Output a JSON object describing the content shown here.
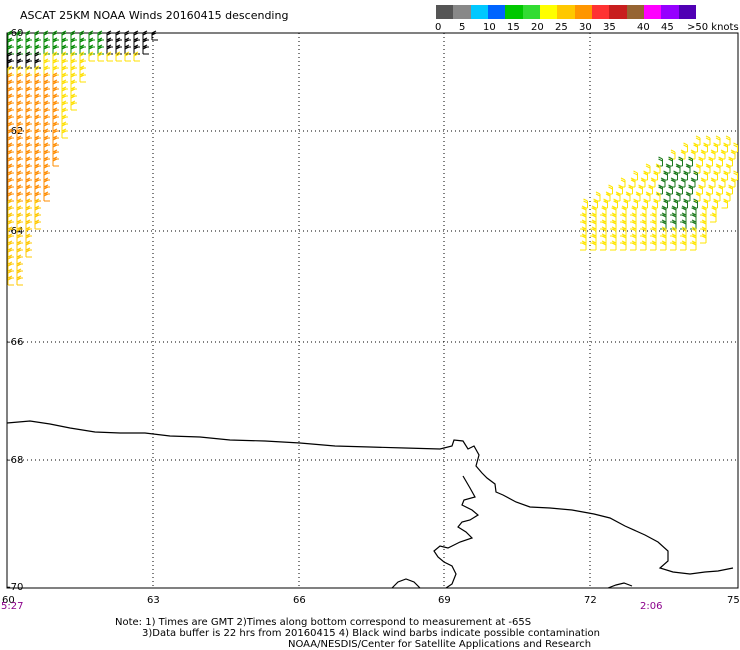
{
  "title": "ASCAT 25KM NOAA Winds 20160415 descending",
  "legend": {
    "colors": [
      "#555555",
      "#888888",
      "#00c8ff",
      "#0064ff",
      "#00c800",
      "#32dc32",
      "#ffff00",
      "#ffc800",
      "#ff9600",
      "#ff3232",
      "#c81e1e",
      "#966432",
      "#ff00ff",
      "#9600ff",
      "#5000b4"
    ],
    "labels": [
      "0",
      "5",
      "10",
      "15",
      "20",
      "25",
      "30",
      "35",
      "40",
      "45",
      ">50 knots"
    ]
  },
  "map": {
    "lat_labels": [
      "-60",
      "-62",
      "-64",
      "-66",
      "-68",
      "-70"
    ],
    "lon_labels": [
      "60",
      "63",
      "66",
      "69",
      "72",
      "75"
    ],
    "times": [
      "5:27",
      "2:06"
    ]
  },
  "notes": {
    "line1": "Note: 1) Times are GMT 2)Times along bottom correspond to measurement at -65S",
    "line2": "3)Data buffer is 22 hrs from 20160415 4) Black wind barbs indicate possible contamination",
    "line3": "NOAA/NESDIS/Center for Satellite Applications and Research"
  }
}
